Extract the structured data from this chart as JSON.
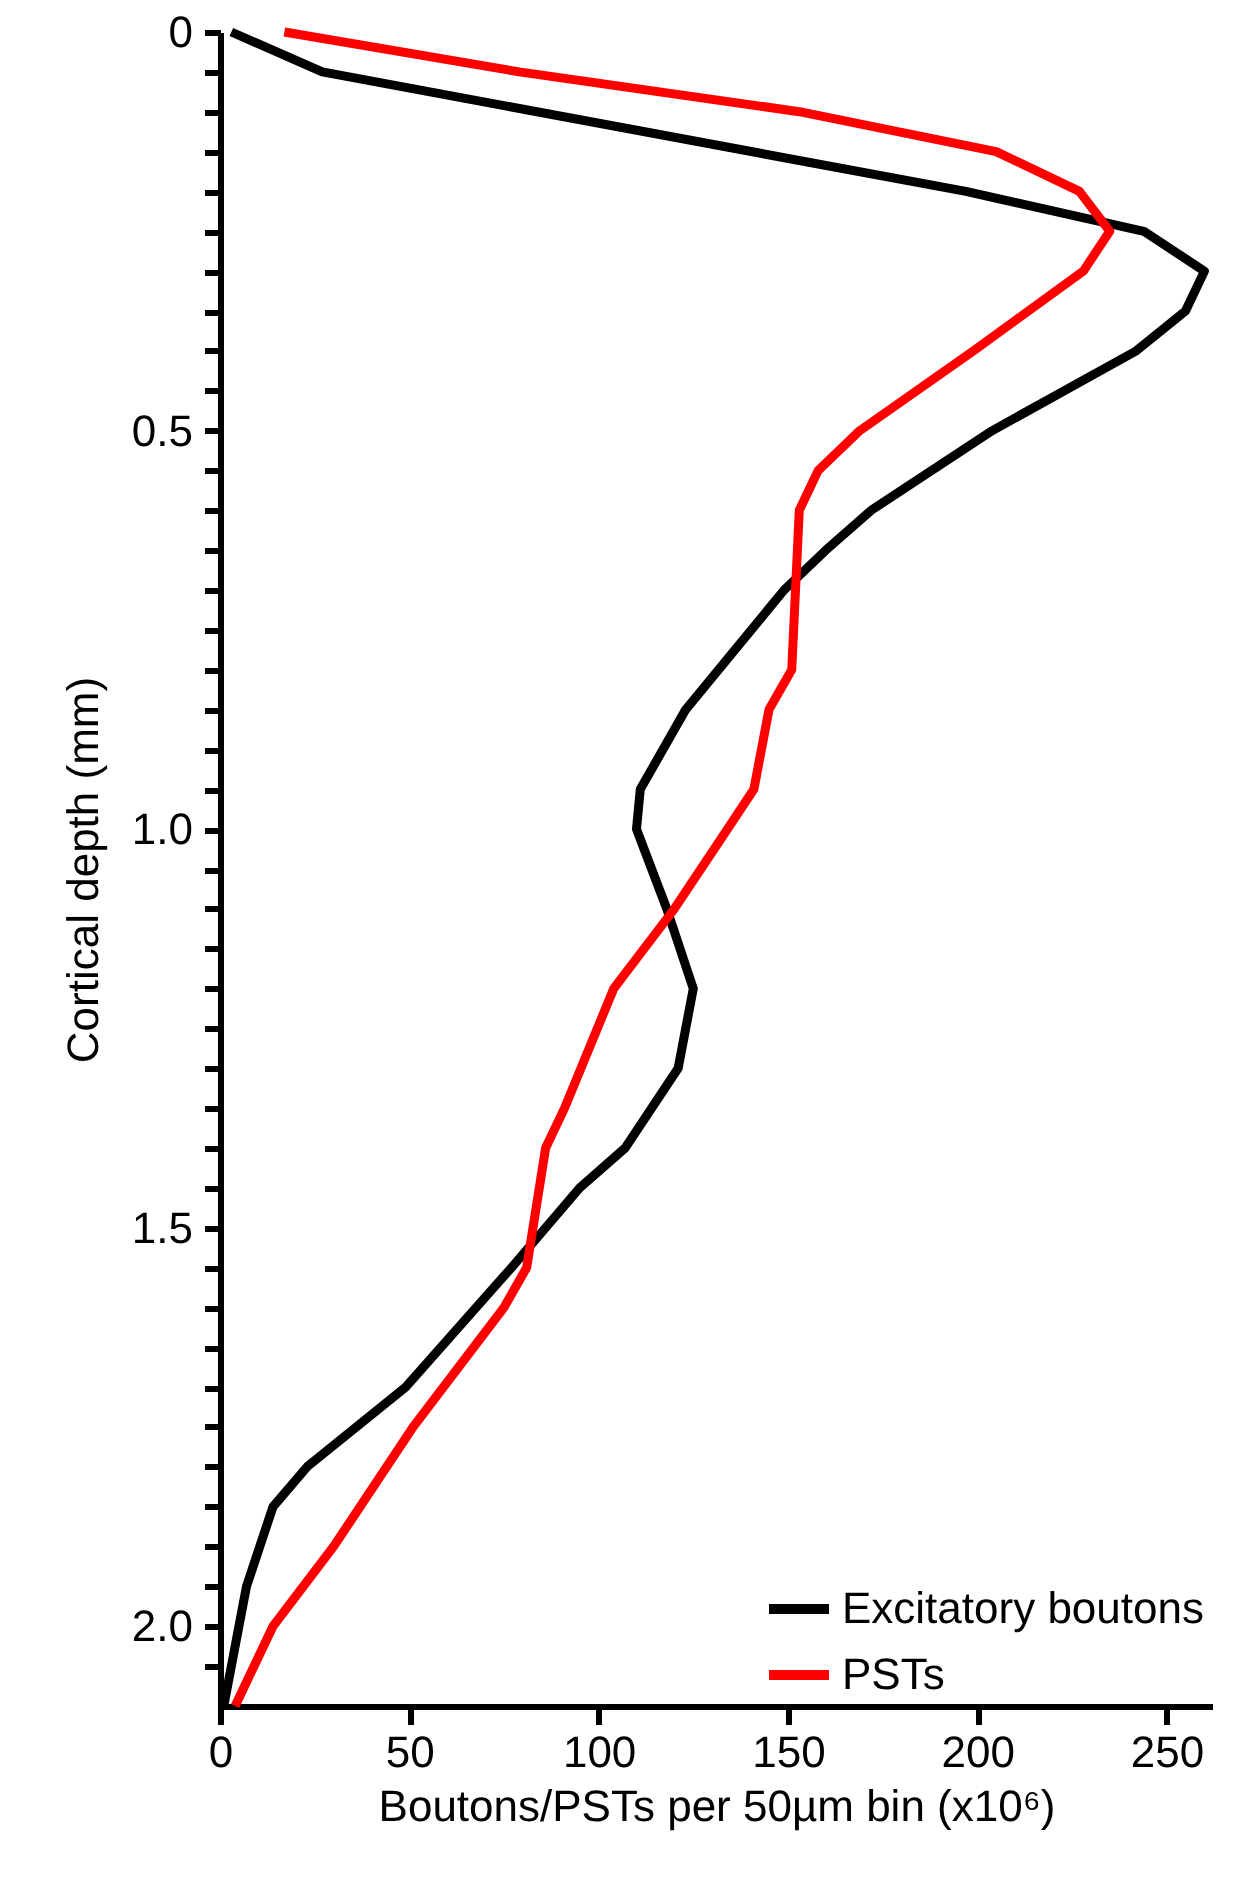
{
  "chart_data": {
    "type": "line",
    "xlabel": "Boutons/PSTs per 50µm bin (x10⁶)",
    "ylabel": "Cortical depth (mm)",
    "xlim": [
      0,
      262
    ],
    "xticks": [
      0,
      50,
      100,
      150,
      200,
      250
    ],
    "ylim": [
      2.1,
      0
    ],
    "yticks": [
      {
        "value": 0,
        "label": "0"
      },
      {
        "value": 0.05,
        "label": null
      },
      {
        "value": 0.1,
        "label": null
      },
      {
        "value": 0.15,
        "label": null
      },
      {
        "value": 0.2,
        "label": null
      },
      {
        "value": 0.25,
        "label": null
      },
      {
        "value": 0.3,
        "label": null
      },
      {
        "value": 0.35,
        "label": null
      },
      {
        "value": 0.4,
        "label": null
      },
      {
        "value": 0.45,
        "label": null
      },
      {
        "value": 0.5,
        "label": "0.5"
      },
      {
        "value": 0.55,
        "label": null
      },
      {
        "value": 0.6,
        "label": null
      },
      {
        "value": 0.65,
        "label": null
      },
      {
        "value": 0.7,
        "label": null
      },
      {
        "value": 0.75,
        "label": null
      },
      {
        "value": 0.8,
        "label": null
      },
      {
        "value": 0.85,
        "label": null
      },
      {
        "value": 0.9,
        "label": null
      },
      {
        "value": 0.95,
        "label": null
      },
      {
        "value": 1,
        "label": "1.0"
      },
      {
        "value": 1.05,
        "label": null
      },
      {
        "value": 1.1,
        "label": null
      },
      {
        "value": 1.15,
        "label": null
      },
      {
        "value": 1.2,
        "label": null
      },
      {
        "value": 1.25,
        "label": null
      },
      {
        "value": 1.3,
        "label": null
      },
      {
        "value": 1.35,
        "label": null
      },
      {
        "value": 1.4,
        "label": null
      },
      {
        "value": 1.45,
        "label": null
      },
      {
        "value": 1.5,
        "label": "1.5"
      },
      {
        "value": 1.55,
        "label": null
      },
      {
        "value": 1.6,
        "label": null
      },
      {
        "value": 1.65,
        "label": null
      },
      {
        "value": 1.7,
        "label": null
      },
      {
        "value": 1.75,
        "label": null
      },
      {
        "value": 1.8,
        "label": null
      },
      {
        "value": 1.85,
        "label": null
      },
      {
        "value": 1.9,
        "label": null
      },
      {
        "value": 1.95,
        "label": null
      },
      {
        "value": 2,
        "label": "2.0"
      },
      {
        "value": 2.05,
        "label": null
      }
    ],
    "legend": "bottom right",
    "marker": "none",
    "line_style": "solid",
    "grid": false,
    "series": [
      {
        "name": "Excitatory boutons",
        "color": "#000000",
        "x": [
          3,
          27,
          197,
          244,
          260,
          255,
          242,
          204,
          172,
          160,
          149,
          123,
          111,
          110,
          118,
          125,
          121,
          107,
          95,
          77,
          49,
          23,
          14,
          7,
          1
        ],
        "values": [
          0,
          0.05,
          0.2,
          0.25,
          0.3,
          0.35,
          0.4,
          0.5,
          0.6,
          0.65,
          0.7,
          0.85,
          0.95,
          1.0,
          1.1,
          1.2,
          1.3,
          1.4,
          1.45,
          1.55,
          1.7,
          1.8,
          1.85,
          1.95,
          2.1
        ]
      },
      {
        "name": "PSTs",
        "color": "#ff0000",
        "x": [
          17,
          79,
          153,
          205,
          227,
          235,
          228,
          199,
          169,
          158,
          153,
          151,
          145,
          141,
          134,
          120,
          104,
          91,
          86,
          81,
          75,
          51,
          30,
          14,
          4
        ],
        "values": [
          0,
          0.05,
          0.1,
          0.15,
          0.2,
          0.25,
          0.3,
          0.4,
          0.5,
          0.55,
          0.6,
          0.8,
          0.85,
          0.95,
          1.0,
          1.1,
          1.2,
          1.35,
          1.4,
          1.55,
          1.6,
          1.75,
          1.9,
          2.0,
          2.1
        ]
      }
    ]
  }
}
